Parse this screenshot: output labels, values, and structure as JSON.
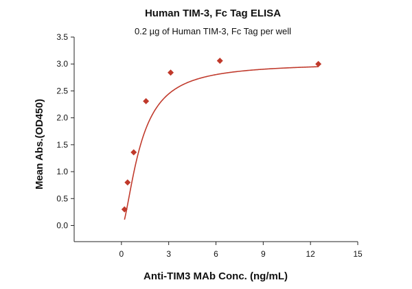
{
  "chart_data": {
    "type": "scatter",
    "title": "Human TIM-3, Fc Tag ELISA",
    "subtitle": "0.2 µg of Human TIM-3, Fc Tag per well",
    "xlabel": "Anti-TIM3 MAb Conc. (ng/mL)",
    "ylabel": "Mean Abs.(OD450)",
    "xlim": [
      -3,
      15
    ],
    "ylim": [
      -0.3,
      3.5
    ],
    "x_ticks": [
      0,
      3,
      6,
      9,
      12,
      15
    ],
    "y_ticks": [
      0.0,
      0.5,
      1.0,
      1.5,
      2.0,
      2.5,
      3.0,
      3.5
    ],
    "x_tick_labels": [
      "0",
      "3",
      "6",
      "9",
      "12",
      "15"
    ],
    "y_tick_labels": [
      "0.0",
      "0.5",
      "1.0",
      "1.5",
      "2.0",
      "2.5",
      "3.0",
      "3.5"
    ],
    "grid": false,
    "legend": "none",
    "point_color": "#c0392b",
    "curve_color": "#c0392b",
    "series": [
      {
        "points": [
          {
            "x": 0.195,
            "y": 0.3
          },
          {
            "x": 0.39,
            "y": 0.8
          },
          {
            "x": 0.78,
            "y": 1.36
          },
          {
            "x": 1.56,
            "y": 2.31
          },
          {
            "x": 3.125,
            "y": 2.84
          },
          {
            "x": 6.25,
            "y": 3.06
          },
          {
            "x": 12.5,
            "y": 3.0
          }
        ]
      }
    ],
    "fit_curve": {
      "type": "four-parameter-logistic",
      "bottom": -0.05,
      "top": 3.02,
      "ec50": 1.2,
      "hill": 1.6
    }
  }
}
